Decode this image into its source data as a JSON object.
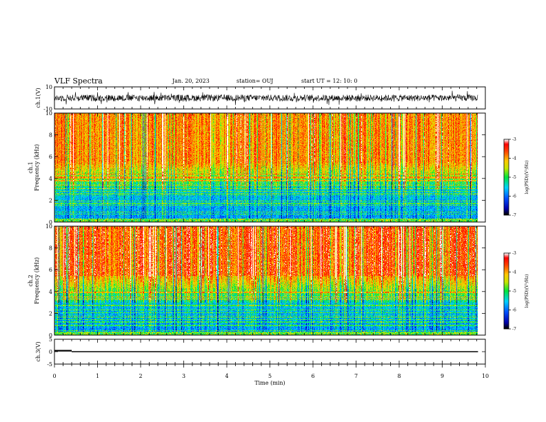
{
  "header": {
    "title": "VLF Spectra",
    "date": "Jan. 20, 2023",
    "station": "station= OUJ",
    "start": "start  UT  =   12: 10: 0"
  },
  "chart_data": [
    {
      "type": "line",
      "panel": "ch1-waveform",
      "ylabel": "ch.1(V)",
      "ylim": [
        -10,
        10
      ],
      "y_ticks": [
        "10",
        "-10"
      ],
      "baseline_v": 0,
      "noise_amplitude_v": 3
    },
    {
      "type": "heatmap",
      "panel": "ch1-spectrogram",
      "ylabel": "ch.1\nFrequency (kHz)",
      "ylim": [
        0,
        10
      ],
      "y_ticks": [
        "0",
        "2",
        "4",
        "6",
        "8",
        "10"
      ],
      "colorbar": {
        "label": "log(PSD)(V²/Hz)",
        "range": [
          -7,
          -3
        ],
        "ticks": [
          "-3",
          "-4",
          "-5",
          "-6",
          "-7"
        ]
      }
    },
    {
      "type": "heatmap",
      "panel": "ch2-spectrogram",
      "ylabel": "ch.2\nFrequency (kHz)",
      "ylim": [
        0,
        10
      ],
      "y_ticks": [
        "0",
        "2",
        "4",
        "6",
        "8",
        "10"
      ],
      "colorbar": {
        "label": "log(PSD)(V²/Hz)",
        "range": [
          -7,
          -3
        ],
        "ticks": [
          "-3",
          "-4",
          "-5",
          "-6",
          "-7"
        ]
      }
    },
    {
      "type": "line",
      "panel": "ch3-waveform",
      "ylabel": "ch.3(V)",
      "ylim": [
        -5,
        5
      ],
      "y_ticks": [
        "5",
        "0",
        "-5"
      ],
      "x_end_min": 9.83,
      "series": [
        {
          "x": [
            0,
            0.4
          ],
          "y": [
            0.4,
            0.4
          ]
        },
        {
          "x": [
            0.4,
            9.83
          ],
          "y": [
            0,
            0
          ]
        }
      ]
    }
  ],
  "x_axis": {
    "label": "Time  (min)",
    "xlim": [
      0,
      10
    ],
    "ticks": [
      "0",
      "1",
      "2",
      "3",
      "4",
      "5",
      "6",
      "7",
      "8",
      "9",
      "10"
    ]
  },
  "colors": {
    "axis": "#000000",
    "background": "#ffffff"
  }
}
